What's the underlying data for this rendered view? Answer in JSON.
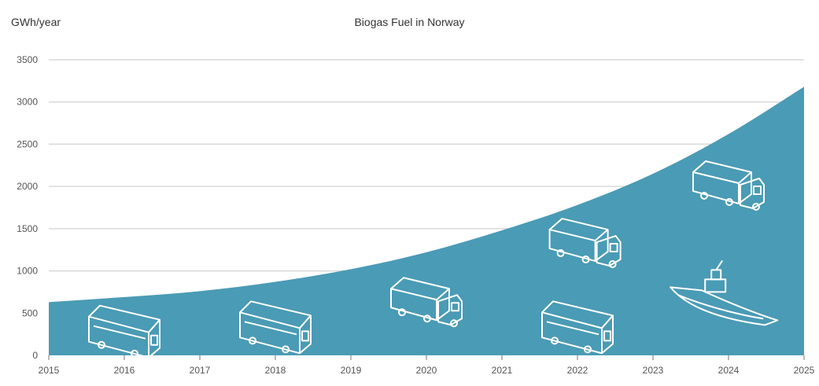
{
  "chart_data": {
    "type": "area",
    "title": "Biogas Fuel in Norway",
    "ylabel": "GWh/year",
    "xlabel": "",
    "x": [
      2015,
      2016,
      2017,
      2018,
      2019,
      2020,
      2021,
      2022,
      2023,
      2024,
      2025
    ],
    "series": [
      {
        "values": [
          630,
          690,
          760,
          870,
          1020,
          1220,
          1480,
          1780,
          2150,
          2620,
          3180
        ]
      }
    ],
    "xlim": [
      2015,
      2025
    ],
    "ylim": [
      0,
      3500
    ],
    "yticks": [
      0,
      500,
      1000,
      1500,
      2000,
      2500,
      3000,
      3500
    ],
    "xticks": [
      "2015",
      "2016",
      "2017",
      "2018",
      "2019",
      "2020",
      "2021",
      "2022",
      "2023",
      "2024",
      "2025"
    ],
    "grid": "horizontal",
    "colors": {
      "area": "#4a9bb5",
      "grid": "#d9d9d9",
      "icons": "#ffffff"
    },
    "icons": [
      {
        "name": "bus-icon",
        "year": 2016.0,
        "value": 310
      },
      {
        "name": "bus-icon",
        "year": 2018.0,
        "value": 360
      },
      {
        "name": "truck-icon",
        "year": 2020.0,
        "value": 640
      },
      {
        "name": "bus-icon",
        "year": 2022.0,
        "value": 360
      },
      {
        "name": "truck-icon",
        "year": 2022.1,
        "value": 1340
      },
      {
        "name": "ferry-icon",
        "year": 2023.7,
        "value": 620
      },
      {
        "name": "truck-icon",
        "year": 2024.0,
        "value": 2020
      }
    ]
  }
}
